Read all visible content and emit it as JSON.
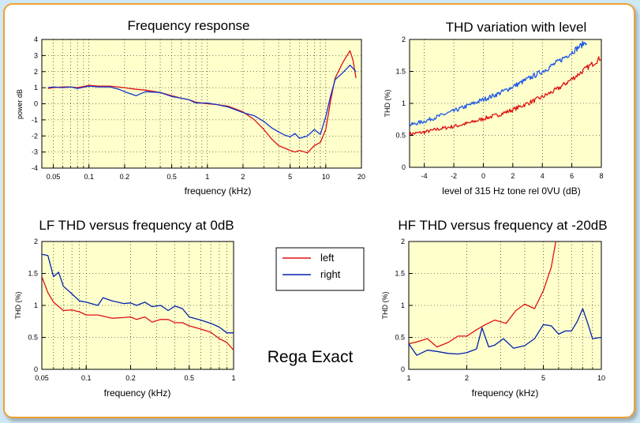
{
  "colors": {
    "left": "#dd1111",
    "right_blue": "#0022aa",
    "right_fr": "#1133cc",
    "right_thd": "#1a55e8",
    "panel_bg": "#ffffcc",
    "frame": "#f0a030"
  },
  "brand_label": "Rega Exact",
  "legend": {
    "left": "left",
    "right": "right"
  },
  "chart_data": [
    {
      "id": "fr",
      "type": "line",
      "title": "Frequency response",
      "xlabel": "frequency (kHz)",
      "ylabel": "power dB",
      "xscale": "log",
      "xlim": [
        0.04,
        20
      ],
      "ylim": [
        -4,
        4
      ],
      "xticks": [
        0.05,
        0.1,
        0.2,
        0.5,
        1,
        2,
        5,
        10,
        20
      ],
      "xtick_labels": [
        "0.05",
        "0.1",
        "0.2",
        "0.5",
        "1",
        "2",
        "5",
        "10",
        "20"
      ],
      "yticks": [
        -4,
        -3,
        -2,
        -1,
        0,
        1,
        2,
        3,
        4
      ],
      "ytick_labels": [
        "-4",
        "-3",
        "-2",
        "-1",
        "0",
        "1",
        "2",
        "3",
        "4"
      ],
      "series": [
        {
          "name": "left",
          "color_key": "left",
          "x": [
            0.045,
            0.05,
            0.06,
            0.07,
            0.08,
            0.1,
            0.12,
            0.15,
            0.2,
            0.25,
            0.3,
            0.4,
            0.5,
            0.6,
            0.7,
            0.8,
            1,
            1.2,
            1.5,
            2,
            2.5,
            3,
            3.5,
            4,
            5,
            5.5,
            6,
            7,
            8,
            9,
            10,
            11,
            12,
            14,
            16,
            17,
            18
          ],
          "values": [
            0.95,
            1.0,
            1.05,
            1.05,
            1.0,
            1.15,
            1.1,
            1.1,
            1.0,
            0.9,
            0.85,
            0.7,
            0.5,
            0.35,
            0.25,
            0.1,
            0.0,
            -0.05,
            -0.15,
            -0.5,
            -1.0,
            -1.6,
            -2.2,
            -2.6,
            -2.9,
            -3.0,
            -2.9,
            -3.05,
            -2.6,
            -2.4,
            -1.6,
            0.2,
            1.6,
            2.6,
            3.3,
            2.7,
            1.6
          ]
        },
        {
          "name": "right",
          "color_key": "right_fr",
          "x": [
            0.045,
            0.05,
            0.06,
            0.07,
            0.08,
            0.1,
            0.12,
            0.15,
            0.18,
            0.2,
            0.25,
            0.3,
            0.4,
            0.5,
            0.6,
            0.7,
            0.8,
            1,
            1.2,
            1.5,
            2,
            2.5,
            3,
            3.5,
            4,
            4.5,
            5,
            5.5,
            6,
            7,
            8,
            9,
            10,
            11,
            12,
            14,
            16,
            17,
            18
          ],
          "values": [
            1.0,
            1.05,
            1.0,
            1.05,
            0.95,
            1.1,
            1.05,
            1.05,
            0.9,
            0.75,
            0.5,
            0.75,
            0.7,
            0.45,
            0.35,
            0.25,
            0.05,
            0.05,
            -0.05,
            -0.2,
            -0.55,
            -0.75,
            -1.1,
            -1.5,
            -1.75,
            -1.95,
            -2.05,
            -1.85,
            -2.15,
            -2.0,
            -1.6,
            -1.9,
            -0.8,
            0.5,
            1.5,
            1.95,
            2.4,
            2.2,
            2.0
          ]
        }
      ]
    },
    {
      "id": "thd_level",
      "type": "line",
      "title": "THD variation with level",
      "xlabel": "level of 315 Hz tone rel 0VU (dB)",
      "ylabel": "THD (%)",
      "xscale": "linear",
      "xlim": [
        -5,
        8
      ],
      "ylim": [
        0,
        2
      ],
      "xticks": [
        -4,
        -2,
        0,
        2,
        4,
        6,
        8
      ],
      "xtick_labels": [
        "-4",
        "-2",
        "0",
        "2",
        "4",
        "6",
        "8"
      ],
      "yticks": [
        0,
        0.5,
        1,
        1.5,
        2
      ],
      "ytick_labels": [
        "0",
        "0.5",
        "1",
        "1.5",
        "2"
      ],
      "series": [
        {
          "name": "left",
          "color_key": "left",
          "noisy": true,
          "x": [
            -5,
            -4,
            -3,
            -2,
            -1,
            0,
            1,
            2,
            3,
            4,
            5,
            6,
            7,
            8
          ],
          "values": [
            0.52,
            0.55,
            0.6,
            0.64,
            0.69,
            0.76,
            0.82,
            0.9,
            1.0,
            1.1,
            1.22,
            1.38,
            1.55,
            1.72
          ]
        },
        {
          "name": "right",
          "color_key": "right_thd",
          "noisy": true,
          "x": [
            -5,
            -4,
            -3,
            -2,
            -1,
            0,
            1,
            2,
            3,
            4,
            5,
            6,
            7
          ],
          "values": [
            0.66,
            0.72,
            0.8,
            0.88,
            0.97,
            1.06,
            1.15,
            1.26,
            1.38,
            1.5,
            1.64,
            1.8,
            1.97
          ]
        }
      ]
    },
    {
      "id": "lf_thd",
      "type": "line",
      "title": "LF THD versus frequency at 0dB",
      "xlabel": "frequency (kHz)",
      "ylabel": "THD (%)",
      "xscale": "log",
      "xlim": [
        0.05,
        1
      ],
      "ylim": [
        0,
        2
      ],
      "xticks": [
        0.05,
        0.1,
        0.2,
        0.5,
        1
      ],
      "xtick_labels": [
        "0.05",
        "0.1",
        "0.2",
        "0.5",
        "1"
      ],
      "yticks": [
        0,
        0.5,
        1,
        1.5,
        2
      ],
      "ytick_labels": [
        "0",
        "0.5",
        "1",
        "1.5",
        "2"
      ],
      "series": [
        {
          "name": "left",
          "color_key": "left",
          "x": [
            0.05,
            0.055,
            0.06,
            0.07,
            0.08,
            0.09,
            0.1,
            0.12,
            0.15,
            0.18,
            0.2,
            0.22,
            0.25,
            0.28,
            0.32,
            0.36,
            0.4,
            0.45,
            0.5,
            0.6,
            0.7,
            0.8,
            0.9,
            1
          ],
          "values": [
            1.45,
            1.2,
            1.05,
            0.92,
            0.93,
            0.9,
            0.85,
            0.85,
            0.8,
            0.81,
            0.82,
            0.78,
            0.82,
            0.74,
            0.78,
            0.78,
            0.73,
            0.73,
            0.68,
            0.63,
            0.58,
            0.48,
            0.42,
            0.3
          ]
        },
        {
          "name": "right",
          "color_key": "right_blue",
          "x": [
            0.05,
            0.055,
            0.06,
            0.065,
            0.07,
            0.08,
            0.09,
            0.1,
            0.12,
            0.13,
            0.15,
            0.18,
            0.2,
            0.22,
            0.25,
            0.28,
            0.32,
            0.36,
            0.4,
            0.45,
            0.5,
            0.6,
            0.7,
            0.8,
            0.9,
            1
          ],
          "values": [
            1.8,
            1.78,
            1.45,
            1.52,
            1.3,
            1.18,
            1.07,
            1.05,
            1.0,
            1.12,
            1.07,
            1.03,
            1.04,
            1.0,
            1.05,
            0.98,
            1.0,
            0.92,
            0.99,
            0.95,
            0.82,
            0.77,
            0.72,
            0.66,
            0.57,
            0.57
          ]
        }
      ]
    },
    {
      "id": "hf_thd",
      "type": "line",
      "title": "HF THD versus frequency at -20dB",
      "xlabel": "frequency (kHz)",
      "ylabel": "THD (%)",
      "xscale": "log",
      "xlim": [
        1,
        10
      ],
      "ylim": [
        0,
        2
      ],
      "xticks": [
        1,
        2,
        5,
        10
      ],
      "xtick_labels": [
        "1",
        "2",
        "5",
        "10"
      ],
      "yticks": [
        0,
        0.5,
        1,
        1.5,
        2
      ],
      "ytick_labels": [
        "0",
        "0.5",
        "1",
        "1.5",
        "2"
      ],
      "series": [
        {
          "name": "left",
          "color_key": "left",
          "x": [
            1,
            1.1,
            1.25,
            1.4,
            1.6,
            1.8,
            2.0,
            2.25,
            2.5,
            2.8,
            3.2,
            3.6,
            4,
            4.5,
            5,
            5.5,
            5.8
          ],
          "values": [
            0.4,
            0.43,
            0.48,
            0.35,
            0.42,
            0.52,
            0.52,
            0.62,
            0.7,
            0.77,
            0.72,
            0.92,
            1.02,
            0.95,
            1.23,
            1.6,
            2.0
          ]
        },
        {
          "name": "right",
          "color_key": "right_blue",
          "x": [
            1,
            1.1,
            1.25,
            1.4,
            1.6,
            1.8,
            2.0,
            2.25,
            2.4,
            2.6,
            2.8,
            3.1,
            3.5,
            4,
            4.5,
            5,
            5.5,
            6,
            6.5,
            7,
            7.5,
            8,
            8.5,
            9,
            10
          ],
          "values": [
            0.4,
            0.22,
            0.3,
            0.28,
            0.25,
            0.24,
            0.26,
            0.32,
            0.65,
            0.35,
            0.38,
            0.48,
            0.33,
            0.37,
            0.48,
            0.7,
            0.68,
            0.55,
            0.6,
            0.6,
            0.75,
            0.95,
            0.72,
            0.48,
            0.5
          ]
        }
      ]
    }
  ]
}
